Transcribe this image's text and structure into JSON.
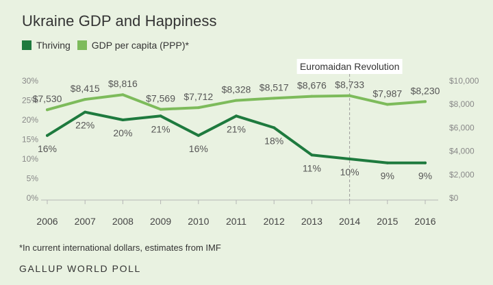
{
  "title": "Ukraine GDP and Happiness",
  "footnote": "*In current international dollars, estimates from IMF",
  "source": "GALLUP WORLD POLL",
  "colors": {
    "background": "#e9f2e1",
    "thriving": "#1e7a3e",
    "gdp": "#7dbb5b",
    "annotation_line": "#9a9a9a",
    "axis_text": "#888888"
  },
  "chart_data": {
    "type": "line",
    "title": "Ukraine GDP and Happiness",
    "categories": [
      "2006",
      "2007",
      "2008",
      "2009",
      "2010",
      "2011",
      "2012",
      "2013",
      "2014",
      "2015",
      "2016"
    ],
    "series": [
      {
        "name": "Thriving",
        "axis": "left",
        "values": [
          16,
          22,
          20,
          21,
          16,
          21,
          18,
          11,
          10,
          9,
          9
        ],
        "labels": [
          "16%",
          "22%",
          "20%",
          "21%",
          "16%",
          "21%",
          "18%",
          "11%",
          "10%",
          "9%",
          "9%"
        ]
      },
      {
        "name": "GDP per capita (PPP)*",
        "axis": "right",
        "values": [
          7530,
          8415,
          8816,
          7569,
          7712,
          8328,
          8517,
          8676,
          8733,
          7987,
          8230
        ],
        "labels": [
          "$7,530",
          "$8,415",
          "$8,816",
          "$7,569",
          "$7,712",
          "$8,328",
          "$8,517",
          "$8,676",
          "$8,733",
          "$7,987",
          "$8,230"
        ]
      }
    ],
    "left_axis": {
      "ylim": [
        0,
        30
      ],
      "ticks": [
        0,
        5,
        10,
        15,
        20,
        25,
        30
      ],
      "tick_labels": [
        "0%",
        "5%",
        "10%",
        "15%",
        "20%",
        "25%",
        "30%"
      ]
    },
    "right_axis": {
      "ylim": [
        0,
        10000
      ],
      "ticks": [
        0,
        2000,
        4000,
        6000,
        8000,
        10000
      ],
      "tick_labels": [
        "$0",
        "$2,000",
        "$4,000",
        "$6,000",
        "$8,000",
        "$10,000"
      ]
    },
    "annotations": [
      {
        "x": "2014",
        "label": "Euromaidan Revolution"
      }
    ],
    "grid": false,
    "legend": "top-left"
  }
}
